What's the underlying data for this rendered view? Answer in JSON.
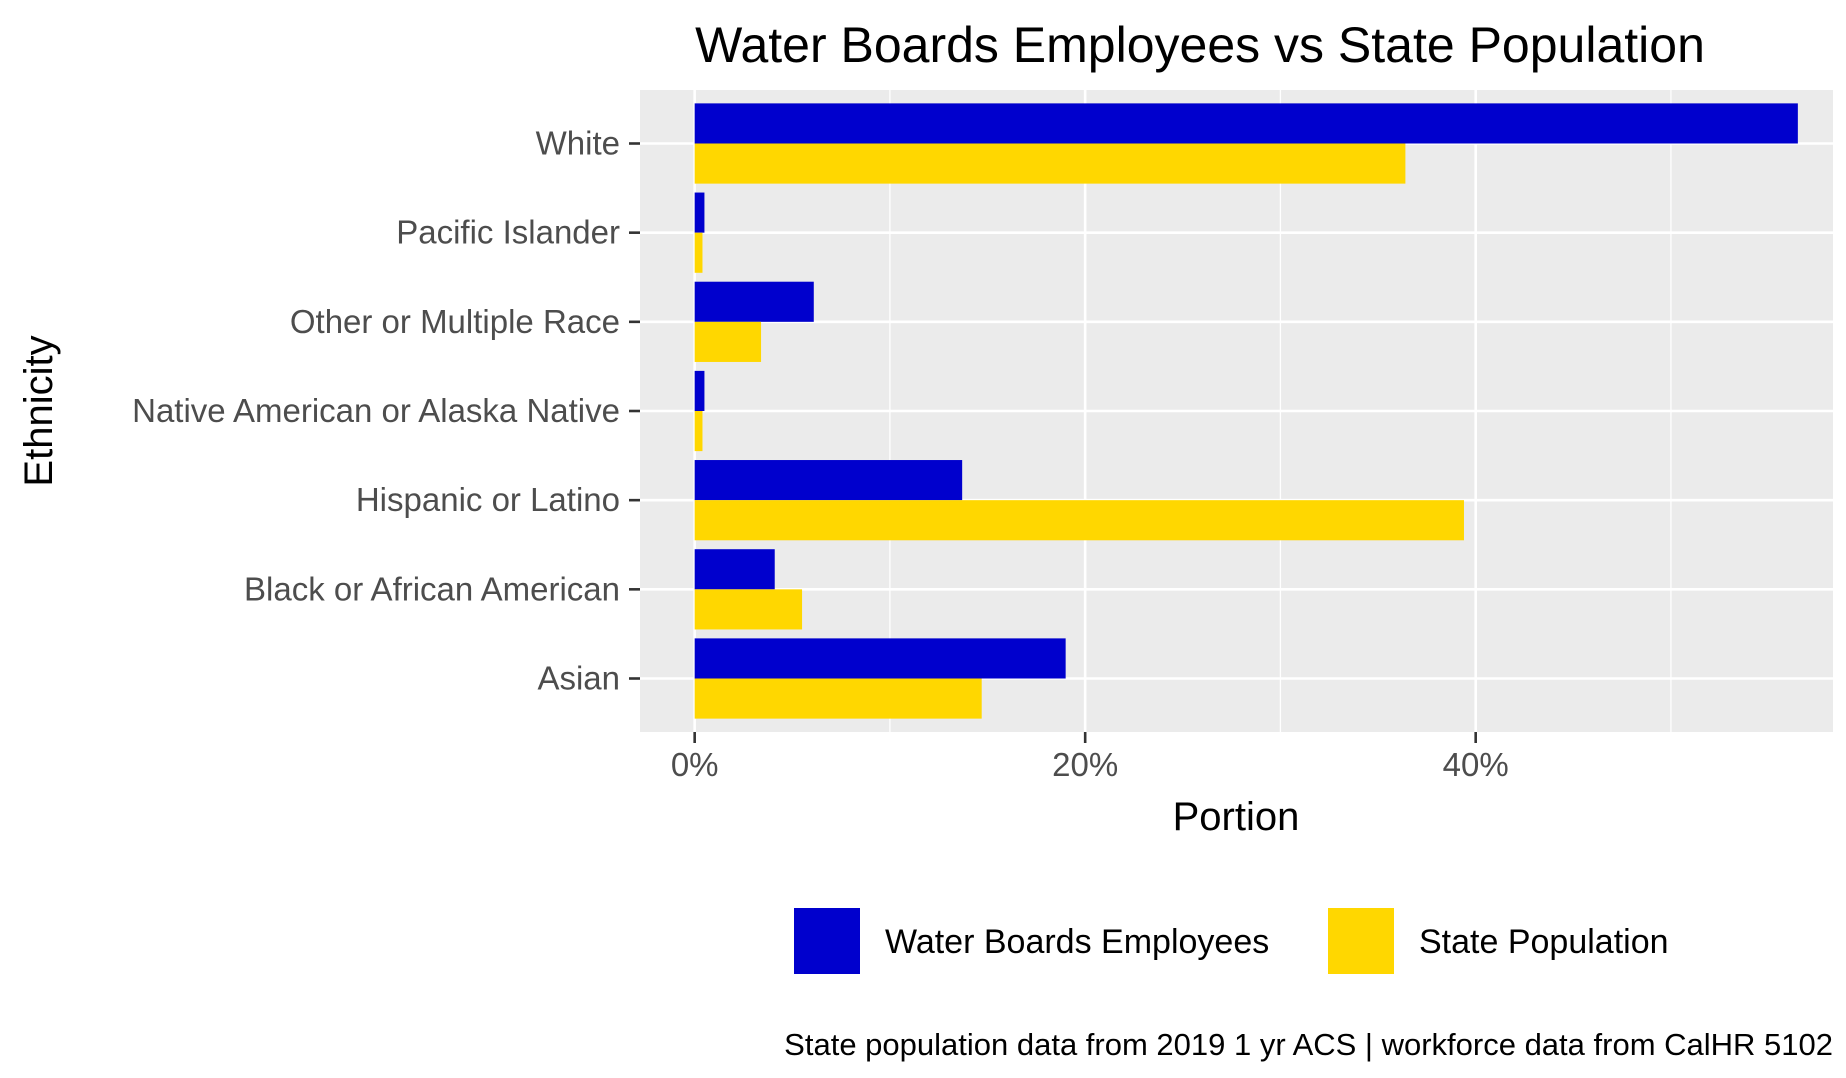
{
  "chart_data": {
    "type": "bar",
    "orientation": "horizontal",
    "title": "Water Boards Employees vs State Population",
    "xlabel": "Portion",
    "ylabel": "Ethnicity",
    "caption": "State population data from 2019 1 yr ACS  |  workforce data from CalHR 5102",
    "categories": [
      "Asian",
      "Black or African American",
      "Hispanic or Latino",
      "Native American or Alaska Native",
      "Other or Multiple Race",
      "Pacific Islander",
      "White"
    ],
    "series": [
      {
        "name": "Water Boards Employees",
        "color": "#0000CD",
        "values": [
          19.0,
          4.1,
          13.7,
          0.5,
          6.1,
          0.5,
          56.5
        ]
      },
      {
        "name": "State Population",
        "color": "#FFD700",
        "values": [
          14.7,
          5.5,
          39.4,
          0.4,
          3.4,
          0.4,
          36.4
        ]
      }
    ],
    "x_ticks": [
      0,
      20,
      40
    ],
    "x_tick_labels": [
      "0%",
      "20%",
      "40%"
    ],
    "xlim": [
      -2.8,
      58.3
    ],
    "grid": true,
    "legend_position": "bottom",
    "panel_background": "#EBEBEB",
    "grid_color": "#FFFFFF"
  }
}
